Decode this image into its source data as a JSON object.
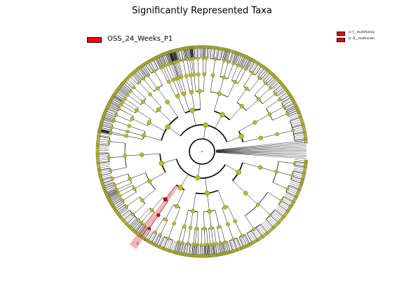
{
  "title": "Significantly Represented Taxa",
  "legend": {
    "group": {
      "label": "OSS_24_Weeks_P1",
      "color": "#ff0000"
    },
    "taxa": [
      {
        "label": "a: f__multifamily",
        "color": "#ff0000"
      },
      {
        "label": "b: O__multiorder",
        "color": "#ff0000"
      }
    ]
  },
  "cladogram": {
    "node_color": "#bcbc1a",
    "highlight_color": "#cc0000",
    "clade_labels": [
      "a",
      "b"
    ]
  }
}
